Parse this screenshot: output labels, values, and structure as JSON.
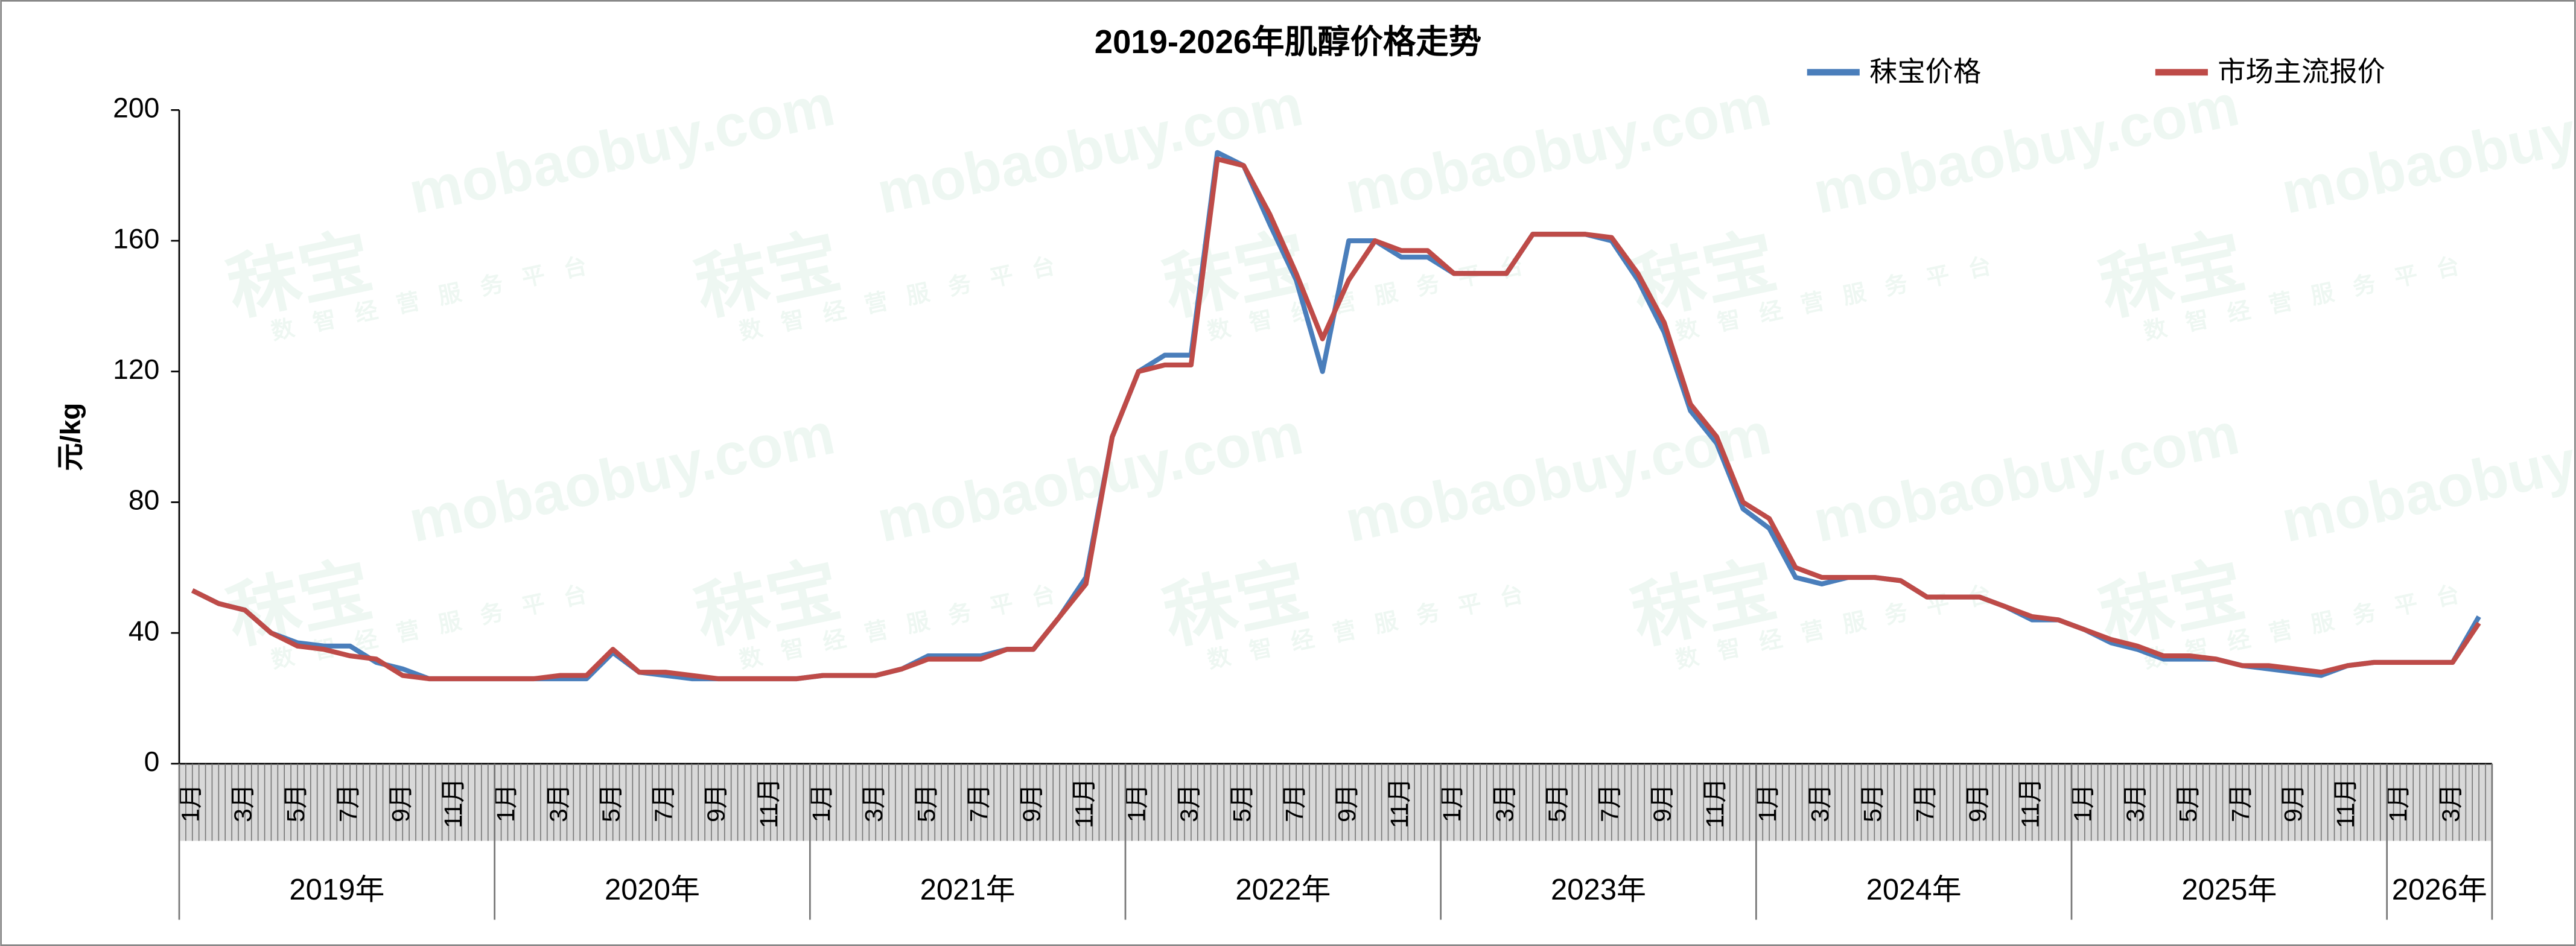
{
  "chart_data": {
    "type": "line",
    "title": "2019-2026年肌醇价格走势",
    "y_label": "元/kg",
    "watermark": {
      "brand": "秣宝",
      "site": "mobaobuy.com",
      "slogan": "数智经营服务平台"
    },
    "categories": [
      "1月",
      null,
      "3月",
      null,
      "5月",
      null,
      "7月",
      null,
      "9月",
      null,
      "11月",
      null,
      "1月",
      null,
      "3月",
      null,
      "5月",
      null,
      "7月",
      null,
      "9月",
      null,
      "11月",
      null,
      "1月",
      null,
      "3月",
      null,
      "5月",
      null,
      "7月",
      null,
      "9月",
      null,
      "11月",
      null,
      "1月",
      null,
      "3月",
      null,
      "5月",
      null,
      "7月",
      null,
      "9月",
      null,
      "11月",
      null,
      "1月",
      null,
      "3月",
      null,
      "5月",
      null,
      "7月",
      null,
      "9月",
      null,
      "11月",
      null,
      "1月",
      null,
      "3月",
      null,
      "5月",
      null,
      "7月",
      null,
      "9月",
      null,
      "11月",
      null,
      "1月",
      null,
      "3月",
      null,
      "5月",
      null,
      "7月",
      null,
      "9月",
      null,
      "11月",
      null,
      "1月",
      null,
      "3月",
      null
    ],
    "year_groups": [
      "2019年",
      "2020年",
      "2021年",
      "2022年",
      "2023年",
      "2024年",
      "2025年",
      "2026年"
    ],
    "series": [
      {
        "name": "秣宝价格",
        "color": "#4a7ebb",
        "values": [
          53,
          49,
          47,
          40,
          37,
          36,
          36,
          31,
          29,
          26,
          26,
          26,
          26,
          26,
          26,
          26,
          34,
          28,
          27,
          26,
          26,
          26,
          26,
          26,
          27,
          27,
          27,
          29,
          33,
          33,
          33,
          35,
          35,
          45,
          57,
          100,
          120,
          125,
          125,
          187,
          183,
          165,
          148,
          120,
          160,
          160,
          155,
          155,
          150,
          150,
          150,
          162,
          162,
          162,
          160,
          148,
          132,
          108,
          98,
          78,
          72,
          57,
          55,
          57,
          57,
          56,
          51,
          51,
          51,
          48,
          44,
          44,
          41,
          37,
          35,
          32,
          32,
          32,
          30,
          29,
          28,
          27,
          30,
          31,
          31,
          31,
          31,
          45
        ]
      },
      {
        "name": "市场主流报价",
        "color": "#be4b48",
        "values": [
          53,
          49,
          47,
          40,
          36,
          35,
          33,
          32,
          27,
          26,
          26,
          26,
          26,
          26,
          27,
          27,
          35,
          28,
          28,
          27,
          26,
          26,
          26,
          26,
          27,
          27,
          27,
          29,
          32,
          32,
          32,
          35,
          35,
          45,
          55,
          100,
          120,
          122,
          122,
          185,
          183,
          168,
          150,
          130,
          148,
          160,
          157,
          157,
          150,
          150,
          150,
          162,
          162,
          162,
          161,
          150,
          135,
          110,
          100,
          80,
          75,
          60,
          57,
          57,
          57,
          56,
          51,
          51,
          51,
          48,
          45,
          44,
          41,
          38,
          36,
          33,
          33,
          32,
          30,
          30,
          29,
          28,
          30,
          31,
          31,
          31,
          31,
          43
        ]
      }
    ],
    "ylim": [
      0,
      200
    ],
    "yticks": [
      0,
      40,
      80,
      120,
      160,
      200
    ],
    "grid": false,
    "legend": "top-right"
  }
}
